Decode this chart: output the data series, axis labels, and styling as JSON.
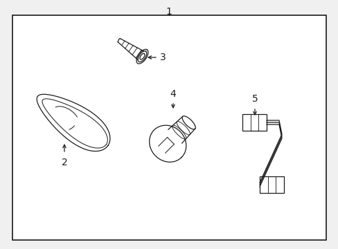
{
  "background_color": "#f0f0f0",
  "box_color": "#ffffff",
  "line_color": "#1a1a1a",
  "label_1": "1",
  "label_2": "2",
  "label_3": "3",
  "label_4": "4",
  "label_5": "5",
  "label_fontsize": 10,
  "fig_width": 4.89,
  "fig_height": 3.6,
  "dpi": 100
}
